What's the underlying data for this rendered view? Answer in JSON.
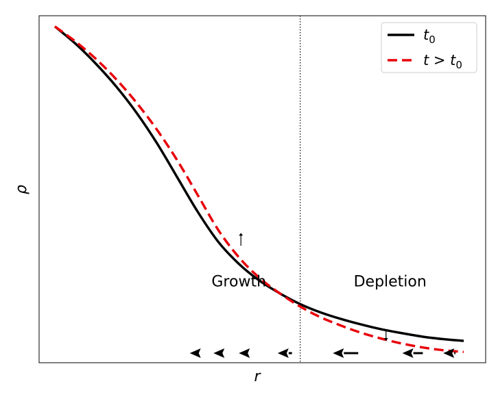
{
  "chart_data": {
    "type": "line",
    "xlabel": "r",
    "ylabel": "ρ",
    "grid": false,
    "ticks": "none",
    "legend_placement": "top-right",
    "colors": {
      "t0": "#000000",
      "t_later": "#e8000b",
      "annotation": "#000000"
    },
    "series": [
      {
        "name": "t0",
        "legend_label": {
          "main": "t",
          "sub": "0"
        },
        "style": "solid",
        "x": [
          0.0,
          0.05,
          0.1,
          0.15,
          0.2,
          0.25,
          0.3,
          0.35,
          0.4,
          0.45,
          0.5,
          0.55,
          0.6,
          0.65,
          0.7,
          0.75,
          0.8,
          0.85,
          0.9,
          0.95,
          1.0
        ],
        "y": [
          0.969,
          0.92,
          0.862,
          0.796,
          0.72,
          0.632,
          0.533,
          0.434,
          0.348,
          0.285,
          0.237,
          0.2,
          0.169,
          0.145,
          0.126,
          0.11,
          0.096,
          0.085,
          0.075,
          0.068,
          0.063
        ]
      },
      {
        "name": "t > t0",
        "legend_label": {
          "main": "t > t",
          "sub": "0"
        },
        "style": "dashed",
        "x": [
          0.0,
          0.05,
          0.1,
          0.15,
          0.2,
          0.25,
          0.3,
          0.35,
          0.4,
          0.45,
          0.5,
          0.55,
          0.6,
          0.65,
          0.7,
          0.75,
          0.8,
          0.85,
          0.9,
          0.95,
          1.0
        ],
        "y": [
          0.969,
          0.926,
          0.876,
          0.817,
          0.749,
          0.671,
          0.582,
          0.482,
          0.382,
          0.304,
          0.245,
          0.2,
          0.162,
          0.131,
          0.107,
          0.086,
          0.069,
          0.055,
          0.044,
          0.036,
          0.031
        ]
      }
    ],
    "vertical_line": {
      "x": 0.6,
      "style": "dotted"
    },
    "region_labels": [
      {
        "text": "Growth",
        "x": 0.45,
        "y": 0.22
      },
      {
        "text": "Depletion",
        "x": 0.82,
        "y": 0.22
      }
    ],
    "change_arrows": [
      {
        "x": 0.455,
        "from": 0.337,
        "to": 0.374,
        "direction": "up"
      },
      {
        "x": 0.81,
        "from": 0.093,
        "to": 0.063,
        "direction": "down"
      }
    ],
    "flow_arrows": [
      {
        "x_tail": 0.35,
        "x_head": 0.33
      },
      {
        "x_tail": 0.41,
        "x_head": 0.388
      },
      {
        "x_tail": 0.465,
        "x_head": 0.45
      },
      {
        "x_tail": 0.58,
        "x_head": 0.545
      },
      {
        "x_tail": 0.742,
        "x_head": 0.68
      },
      {
        "x_tail": 0.9,
        "x_head": 0.85
      },
      {
        "x_tail": 0.98,
        "x_head": 0.95
      }
    ]
  }
}
